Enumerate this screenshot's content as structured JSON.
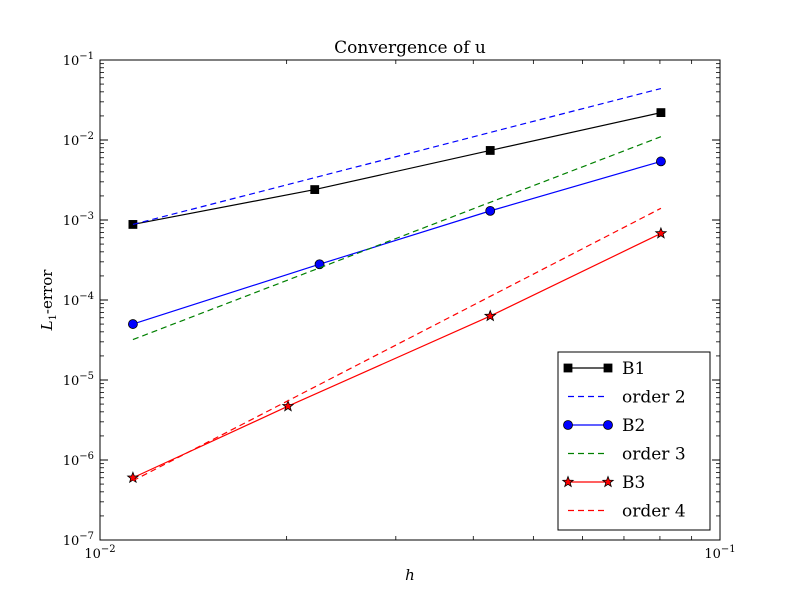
{
  "chart_data": {
    "type": "line",
    "title": "Convergence of u",
    "xlabel": "h",
    "ylabel_main": "L",
    "ylabel_sub": "1",
    "ylabel_suffix": "-error",
    "xscale": "log",
    "yscale": "log",
    "xlim": [
      0.01,
      0.1
    ],
    "ylim": [
      1e-07,
      0.1
    ],
    "grid": false,
    "legend_position": "lower-right",
    "x_ticks": [
      {
        "value": 0.01,
        "base": "10",
        "exp": "−2"
      },
      {
        "value": 0.1,
        "base": "10",
        "exp": "−1"
      }
    ],
    "y_ticks": [
      {
        "value": 0.1,
        "base": "10",
        "exp": "−1"
      },
      {
        "value": 0.01,
        "base": "10",
        "exp": "−2"
      },
      {
        "value": 0.001,
        "base": "10",
        "exp": "−3"
      },
      {
        "value": 0.0001,
        "base": "10",
        "exp": "−4"
      },
      {
        "value": 1e-05,
        "base": "10",
        "exp": "−5"
      },
      {
        "value": 1e-06,
        "base": "10",
        "exp": "−6"
      },
      {
        "value": 1e-07,
        "base": "10",
        "exp": "−7"
      }
    ],
    "series": [
      {
        "name": "B1",
        "color": "#000000",
        "style": "solid",
        "marker": "square",
        "x": [
          0.0113,
          0.0222,
          0.0426,
          0.0803
        ],
        "y": [
          0.00088,
          0.0024,
          0.0074,
          0.022
        ]
      },
      {
        "name": "order 2",
        "color": "#0000ff",
        "style": "dashed",
        "marker": "none",
        "x": [
          0.0113,
          0.0803
        ],
        "y": [
          0.00088,
          0.044
        ]
      },
      {
        "name": "B2",
        "color": "#0000ff",
        "style": "solid",
        "marker": "circle",
        "x": [
          0.0113,
          0.0226,
          0.0426,
          0.0803
        ],
        "y": [
          5e-05,
          0.00028,
          0.0013,
          0.0054
        ]
      },
      {
        "name": "order 3",
        "color": "#008000",
        "style": "dashed",
        "marker": "none",
        "x": [
          0.0113,
          0.0803
        ],
        "y": [
          3.2e-05,
          0.011
        ]
      },
      {
        "name": "B3",
        "color": "#ff0000",
        "style": "solid",
        "marker": "star",
        "x": [
          0.0113,
          0.0201,
          0.0426,
          0.0803
        ],
        "y": [
          6e-07,
          4.7e-06,
          6.3e-05,
          0.00068
        ]
      },
      {
        "name": "order 4",
        "color": "#ff0000",
        "style": "dashed",
        "marker": "none",
        "x": [
          0.0113,
          0.0803
        ],
        "y": [
          5.5e-07,
          0.0014
        ]
      }
    ]
  }
}
